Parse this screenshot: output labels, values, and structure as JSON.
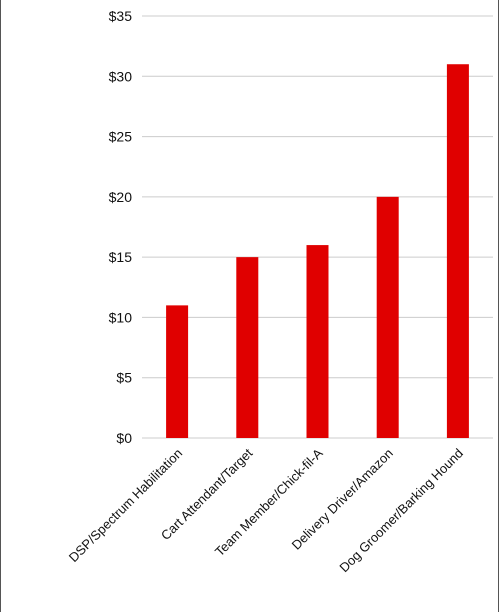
{
  "chart_data": {
    "type": "bar",
    "title": "",
    "xlabel": "",
    "ylabel": "",
    "categories": [
      "DSP/Spectrum Habilitation",
      "Cart Attendant/Target",
      "Team Member/Chick-fil-A",
      "Delivery Driver/Amazon",
      "Dog Groomer/Barking Hound"
    ],
    "values": [
      11,
      15,
      16,
      20,
      31
    ],
    "ylim": [
      0,
      35
    ],
    "yticks": [
      0,
      5,
      10,
      15,
      20,
      25,
      30,
      35
    ],
    "ytick_labels": [
      "$0",
      "$5",
      "$10",
      "$15",
      "$20",
      "$25",
      "$30",
      "$35"
    ],
    "grid": true,
    "bar_color": "#e00000",
    "grid_color": "#cccccc"
  }
}
